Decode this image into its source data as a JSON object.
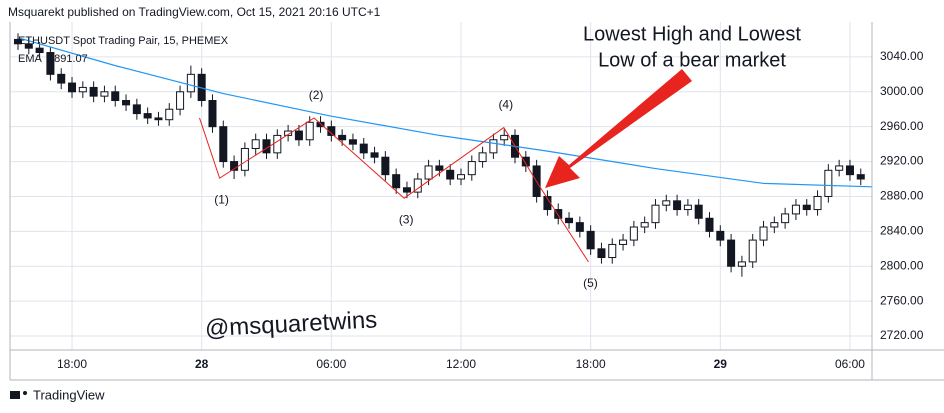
{
  "chart_data": {
    "type": "candlestick",
    "title": "Msquarekt published on TradingView.com, Oct 15, 2021 20:16 UTC+1",
    "subtitle": "ETHUSDT Spot Trading Pair, 15, PHEMEX",
    "brand": "TradingView",
    "watermark": "@msquaretwins",
    "annotation": [
      "Lowest High and Lowest",
      "Low of a bear market"
    ],
    "annotation_color": "#e8241f",
    "up_color": "#ffffff",
    "down_color": "#131722",
    "xlim": [
      15.13,
      55.02
    ],
    "ylim": [
      2704,
      3080
    ],
    "xticks": [
      {
        "value": 18,
        "label": "18:00"
      },
      {
        "value": 24,
        "label": "28"
      },
      {
        "value": 30,
        "label": "06:00"
      },
      {
        "value": 36,
        "label": "12:00"
      },
      {
        "value": 42,
        "label": "18:00"
      },
      {
        "value": 48,
        "label": "29"
      },
      {
        "value": 54,
        "label": "06:00"
      }
    ],
    "yticks": [
      {
        "value": 2720,
        "label": "2720.00"
      },
      {
        "value": 2760,
        "label": "2760.00"
      },
      {
        "value": 2800,
        "label": "2800.00"
      },
      {
        "value": 2840,
        "label": "2840.00"
      },
      {
        "value": 2880,
        "label": "2880.00"
      },
      {
        "value": 2920,
        "label": "2920.00"
      },
      {
        "value": 2960,
        "label": "2960.00"
      },
      {
        "value": 3000,
        "label": "3000.00"
      },
      {
        "value": 3040,
        "label": "3040.00"
      }
    ],
    "x": [
      15.5,
      16,
      16.5,
      17,
      17.5,
      18,
      18.5,
      19,
      19.5,
      20,
      20.5,
      21,
      21.5,
      22,
      22.5,
      23,
      23.5,
      24,
      24.5,
      25,
      25.5,
      26,
      26.5,
      27,
      27.5,
      28,
      28.5,
      29,
      29.5,
      30,
      30.5,
      31,
      31.5,
      32,
      32.5,
      33,
      33.5,
      34,
      34.5,
      35,
      35.5,
      36,
      36.5,
      37,
      37.5,
      38,
      38.5,
      39,
      39.5,
      40,
      40.5,
      41,
      41.5,
      42,
      42.5,
      43,
      43.5,
      44,
      44.5,
      45,
      45.5,
      46,
      46.5,
      47,
      47.5,
      48,
      48.5,
      49,
      49.5,
      50,
      50.5,
      51,
      51.5,
      52,
      52.5,
      53,
      53.5,
      54,
      54.5
    ],
    "open": [
      3060,
      3055,
      3050,
      3045,
      3020,
      3010,
      3000,
      3005,
      2995,
      3000,
      2990,
      2985,
      2975,
      2970,
      2968,
      2980,
      3000,
      3020,
      2990,
      2960,
      2920,
      2910,
      2935,
      2945,
      2930,
      2950,
      2955,
      2945,
      2965,
      2960,
      2950,
      2945,
      2940,
      2930,
      2925,
      2905,
      2890,
      2885,
      2900,
      2915,
      2910,
      2900,
      2905,
      2920,
      2930,
      2945,
      2950,
      2925,
      2915,
      2880,
      2865,
      2855,
      2850,
      2840,
      2820,
      2810,
      2825,
      2830,
      2845,
      2850,
      2870,
      2875,
      2865,
      2870,
      2855,
      2840,
      2830,
      2800,
      2805,
      2830,
      2845,
      2850,
      2860,
      2870,
      2865,
      2880,
      2910,
      2915,
      2905
    ],
    "high": [
      3067,
      3062,
      3057,
      3052,
      3027,
      3017,
      3012,
      3012,
      3007,
      3007,
      2997,
      2992,
      2982,
      2977,
      2987,
      3007,
      3030,
      3027,
      2997,
      2967,
      2927,
      2942,
      2952,
      2952,
      2957,
      2962,
      2962,
      2972,
      2972,
      2967,
      2957,
      2952,
      2947,
      2937,
      2932,
      2912,
      2897,
      2907,
      2922,
      2922,
      2917,
      2912,
      2927,
      2937,
      2952,
      2957,
      2957,
      2932,
      2922,
      2887,
      2872,
      2862,
      2857,
      2847,
      2827,
      2832,
      2837,
      2852,
      2857,
      2877,
      2882,
      2882,
      2877,
      2877,
      2862,
      2847,
      2837,
      2812,
      2837,
      2852,
      2857,
      2867,
      2877,
      2877,
      2887,
      2917,
      2922,
      2922,
      2912
    ],
    "low": [
      3048,
      3043,
      3038,
      3013,
      3003,
      2993,
      2993,
      2988,
      2988,
      2983,
      2978,
      2968,
      2963,
      2961,
      2961,
      2973,
      2993,
      2983,
      2953,
      2913,
      2900,
      2903,
      2928,
      2923,
      2923,
      2943,
      2938,
      2938,
      2953,
      2943,
      2938,
      2933,
      2923,
      2918,
      2898,
      2883,
      2878,
      2878,
      2893,
      2903,
      2893,
      2893,
      2898,
      2913,
      2923,
      2938,
      2918,
      2908,
      2873,
      2858,
      2848,
      2843,
      2833,
      2813,
      2803,
      2803,
      2818,
      2823,
      2838,
      2843,
      2863,
      2858,
      2858,
      2848,
      2833,
      2823,
      2793,
      2788,
      2798,
      2823,
      2838,
      2843,
      2853,
      2858,
      2858,
      2873,
      2903,
      2898,
      2893
    ],
    "close": [
      3055,
      3050,
      3045,
      3020,
      3010,
      3000,
      3005,
      2995,
      3000,
      2990,
      2985,
      2975,
      2970,
      2968,
      2980,
      3000,
      3020,
      2990,
      2960,
      2920,
      2910,
      2935,
      2945,
      2930,
      2950,
      2955,
      2945,
      2965,
      2960,
      2950,
      2945,
      2940,
      2930,
      2925,
      2905,
      2890,
      2885,
      2900,
      2915,
      2910,
      2900,
      2905,
      2920,
      2930,
      2945,
      2950,
      2925,
      2915,
      2880,
      2865,
      2855,
      2850,
      2840,
      2820,
      2810,
      2825,
      2830,
      2845,
      2850,
      2870,
      2875,
      2865,
      2870,
      2855,
      2840,
      2830,
      2800,
      2805,
      2830,
      2845,
      2850,
      2860,
      2870,
      2865,
      2880,
      2910,
      2915,
      2905,
      2900
    ],
    "ema": {
      "name": "EMA",
      "color": "#2196f3",
      "x": [
        15.5,
        20,
        25,
        30,
        35,
        40,
        45,
        50,
        55
      ],
      "values": [
        3062,
        3030,
        2998,
        2972,
        2950,
        2932,
        2912,
        2895,
        2891.07
      ]
    },
    "zigzag": {
      "color": "#e8241f",
      "x": [
        23.9,
        24.83,
        29.2,
        33.37,
        37.98,
        39.6,
        41.9
      ],
      "values": [
        2970,
        2901,
        2970,
        2878,
        2959,
        2893,
        2805
      ],
      "labels": [
        null,
        "(1)",
        "(2)",
        "(3)",
        "(4)",
        null,
        "(5)"
      ]
    }
  }
}
